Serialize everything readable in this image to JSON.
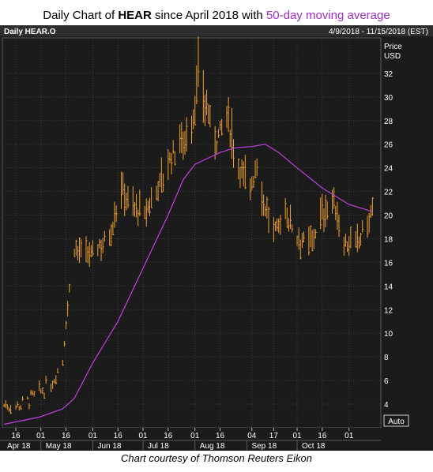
{
  "title": {
    "prefix": "Daily Chart of ",
    "ticker": "HEAR",
    "middle": " since April 2018 with ",
    "ma_label": "50-day moving average"
  },
  "panel": {
    "instrument": "Daily HEAR.O",
    "date_range": "4/9/2018 - 11/15/2018 (EST)",
    "price_label_1": "Price",
    "price_label_2": "USD",
    "auto_label": "Auto"
  },
  "caption": "Chart courtesy of Thomson Reuters Eikon",
  "colors": {
    "background": "#1b1b1b",
    "grid": "#3a3a3a",
    "bars": "#f0a030",
    "moving_average": "#c040e0",
    "text": "#ffffff"
  },
  "chart_data": {
    "type": "line",
    "title": "Daily Chart of HEAR since April 2018 with 50-day moving average",
    "ylabel": "Price USD",
    "ylim": [
      2,
      35
    ],
    "yticks": [
      4,
      6,
      8,
      10,
      12,
      14,
      16,
      18,
      20,
      22,
      24,
      26,
      28,
      30,
      32
    ],
    "x_tick_labels": [
      "16",
      "01",
      "16",
      "01",
      "16",
      "01",
      "16",
      "01",
      "16",
      "04",
      "17",
      "01",
      "16",
      "01"
    ],
    "x_month_labels": [
      "Apr 18",
      "May 18",
      "Jun 18",
      "Jul 18",
      "Aug 18",
      "Sep 18",
      "Oct 18"
    ],
    "grid": true,
    "series": [
      {
        "name": "HEAR.O",
        "style": "daily high-low bars",
        "points": [
          [
            "2018-04-09",
            4.0
          ],
          [
            "2018-04-16",
            3.9
          ],
          [
            "2018-04-23",
            4.3
          ],
          [
            "2018-04-30",
            5.0
          ],
          [
            "2018-05-07",
            5.8
          ],
          [
            "2018-05-14",
            7.8
          ],
          [
            "2018-05-16",
            11.2
          ],
          [
            "2018-05-21",
            17.5
          ],
          [
            "2018-05-28",
            16.5
          ],
          [
            "2018-06-04",
            17.5
          ],
          [
            "2018-06-11",
            18.5
          ],
          [
            "2018-06-18",
            22.5
          ],
          [
            "2018-06-25",
            21.0
          ],
          [
            "2018-07-02",
            20.0
          ],
          [
            "2018-07-09",
            22.5
          ],
          [
            "2018-07-16",
            24.5
          ],
          [
            "2018-07-23",
            26.5
          ],
          [
            "2018-07-30",
            27.5
          ],
          [
            "2018-08-03",
            32.0
          ],
          [
            "2018-08-06",
            30.5
          ],
          [
            "2018-08-13",
            26.5
          ],
          [
            "2018-08-20",
            28.5
          ],
          [
            "2018-08-27",
            24.5
          ],
          [
            "2018-09-03",
            22.5
          ],
          [
            "2018-09-07",
            24.5
          ],
          [
            "2018-09-10",
            22.0
          ],
          [
            "2018-09-17",
            18.5
          ],
          [
            "2018-09-24",
            20.5
          ],
          [
            "2018-10-01",
            18.5
          ],
          [
            "2018-10-08",
            17.5
          ],
          [
            "2018-10-15",
            20.0
          ],
          [
            "2018-10-22",
            21.5
          ],
          [
            "2018-10-29",
            18.0
          ],
          [
            "2018-11-05",
            17.5
          ],
          [
            "2018-11-12",
            19.5
          ],
          [
            "2018-11-15",
            20.5
          ]
        ]
      },
      {
        "name": "50-day moving average",
        "points": [
          [
            "2018-04-09",
            2.3
          ],
          [
            "2018-04-16",
            2.5
          ],
          [
            "2018-04-30",
            2.9
          ],
          [
            "2018-05-14",
            3.6
          ],
          [
            "2018-05-21",
            4.5
          ],
          [
            "2018-06-01",
            7.5
          ],
          [
            "2018-06-16",
            11.0
          ],
          [
            "2018-07-01",
            15.5
          ],
          [
            "2018-07-16",
            20.0
          ],
          [
            "2018-07-25",
            23.0
          ],
          [
            "2018-08-01",
            24.3
          ],
          [
            "2018-08-16",
            25.3
          ],
          [
            "2018-08-25",
            25.7
          ],
          [
            "2018-09-04",
            25.8
          ],
          [
            "2018-09-12",
            26.0
          ],
          [
            "2018-09-20",
            25.3
          ],
          [
            "2018-10-01",
            24.0
          ],
          [
            "2018-10-16",
            22.3
          ],
          [
            "2018-11-01",
            20.9
          ],
          [
            "2018-11-15",
            20.3
          ]
        ]
      }
    ]
  }
}
